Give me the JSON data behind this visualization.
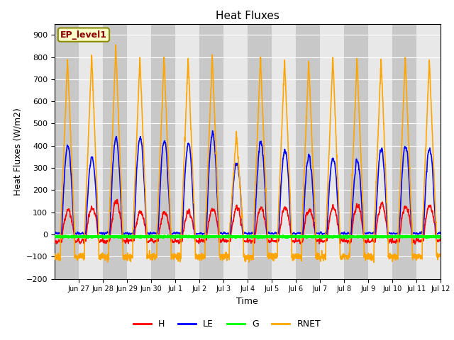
{
  "title": "Heat Fluxes",
  "xlabel": "Time",
  "ylabel": "Heat Fluxes (W/m2)",
  "ylim": [
    -200,
    950
  ],
  "yticks": [
    -200,
    -100,
    0,
    100,
    200,
    300,
    400,
    500,
    600,
    700,
    800,
    900
  ],
  "legend_label": "EP_level1",
  "series_labels": [
    "H",
    "LE",
    "G",
    "RNET"
  ],
  "series_colors": [
    "red",
    "blue",
    "green",
    "orange"
  ],
  "axes_facecolor": "#e8e8e8",
  "band_color": "#d3d3d3",
  "grid_color": "white",
  "n_days": 16,
  "points_per_day": 144,
  "day_labels": [
    "Jun 27",
    "Jun 28",
    "Jun 29",
    "Jun 30",
    "Jul 1",
    "Jul 2",
    "Jul 3",
    "Jul 4",
    "Jul 5",
    "Jul 6",
    "Jul 7",
    "Jul 8",
    "Jul 9",
    "Jul 10",
    "Jul 11",
    "Jul 12"
  ],
  "rnet_amps": [
    790,
    810,
    850,
    800,
    800,
    800,
    800,
    460,
    800,
    790,
    780,
    800,
    790,
    790,
    800,
    790
  ],
  "le_amps": [
    400,
    350,
    440,
    440,
    420,
    410,
    460,
    330,
    420,
    380,
    350,
    350,
    330,
    380,
    400,
    390
  ],
  "h_amps": [
    110,
    120,
    150,
    100,
    100,
    100,
    115,
    120,
    115,
    120,
    115,
    120,
    135,
    135,
    130,
    130
  ]
}
